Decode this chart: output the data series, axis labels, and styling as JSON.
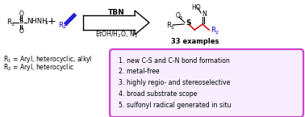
{
  "bg_color": "#ffffff",
  "alkyne_color": "#0000cc",
  "product_chain_color": "#cc0000",
  "box_border_color": "#cc44cc",
  "box_bg_color": "#f8eeff",
  "text_color": "#000000",
  "tbn_label": "TBN",
  "examples_label": "33 examples",
  "r1_label": "R$_1$ = Aryl, heterocyclic, alkyl",
  "r2_label": "R$_2$ = Aryl, heterocyclic",
  "bullet_points": [
    "1. new C-S and C-N bond formation",
    "2. metal-free",
    "3. highly regio- and stereoselective",
    "4. broad substrate scope",
    "5. sulfonyl radical generated in situ"
  ],
  "fig_width": 3.78,
  "fig_height": 1.45,
  "dpi": 100
}
